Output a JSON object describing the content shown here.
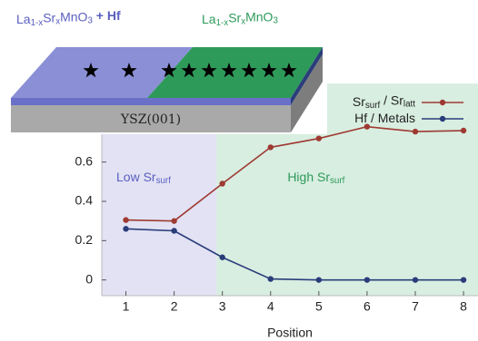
{
  "chart_data": {
    "type": "line",
    "x_label": "Position",
    "x": [
      1,
      2,
      3,
      4,
      5,
      6,
      7,
      8
    ],
    "xlim": [
      0.5,
      8.3
    ],
    "xticks": [
      1,
      2,
      3,
      4,
      5,
      6,
      7,
      8
    ],
    "ylim": [
      -0.08,
      1.0
    ],
    "yticks": [
      0,
      0.2,
      0.4,
      0.6
    ],
    "legend": "upper right",
    "series": [
      {
        "name": [
          {
            "t": "Sr"
          },
          {
            "t": "surf",
            "sub": true
          },
          {
            "t": " / Sr"
          },
          {
            "t": "latt",
            "sub": true
          }
        ],
        "color": "#9e3a32",
        "values": [
          0.305,
          0.3,
          0.49,
          0.675,
          0.72,
          0.78,
          0.755,
          0.76
        ]
      },
      {
        "name": [
          {
            "t": "Hf / Metals"
          }
        ],
        "color": "#2a3d7a",
        "values": [
          0.26,
          0.25,
          0.115,
          0.005,
          0.0,
          0.0,
          0.0,
          0.0
        ]
      }
    ],
    "regions": [
      {
        "from": 0.5,
        "to": 2.88,
        "color": "#e2e2f4",
        "label_color": "#5a5fbf",
        "label": [
          {
            "t": "Low Sr"
          },
          {
            "t": "surf",
            "sub": true
          }
        ]
      },
      {
        "from": 2.88,
        "to": 8.3,
        "color": "#d8eee1",
        "label_color": "#2e9a5a",
        "label": [
          {
            "t": "High Sr"
          },
          {
            "t": "surf",
            "sub": true
          }
        ]
      }
    ],
    "inset": {
      "left_label": [
        {
          "t": "La"
        },
        {
          "t": "1-x",
          "sub": true
        },
        {
          "t": "Sr"
        },
        {
          "t": "x",
          "sub": true
        },
        {
          "t": "MnO"
        },
        {
          "t": "3",
          "sub": true
        },
        {
          "t": " + Hf",
          "bold": true
        }
      ],
      "right_label": [
        {
          "t": "La"
        },
        {
          "t": "1-x",
          "sub": true
        },
        {
          "t": "Sr"
        },
        {
          "t": "x",
          "sub": true
        },
        {
          "t": "MnO"
        },
        {
          "t": "3",
          "sub": true
        }
      ],
      "substrate": "YSZ(001)"
    }
  }
}
